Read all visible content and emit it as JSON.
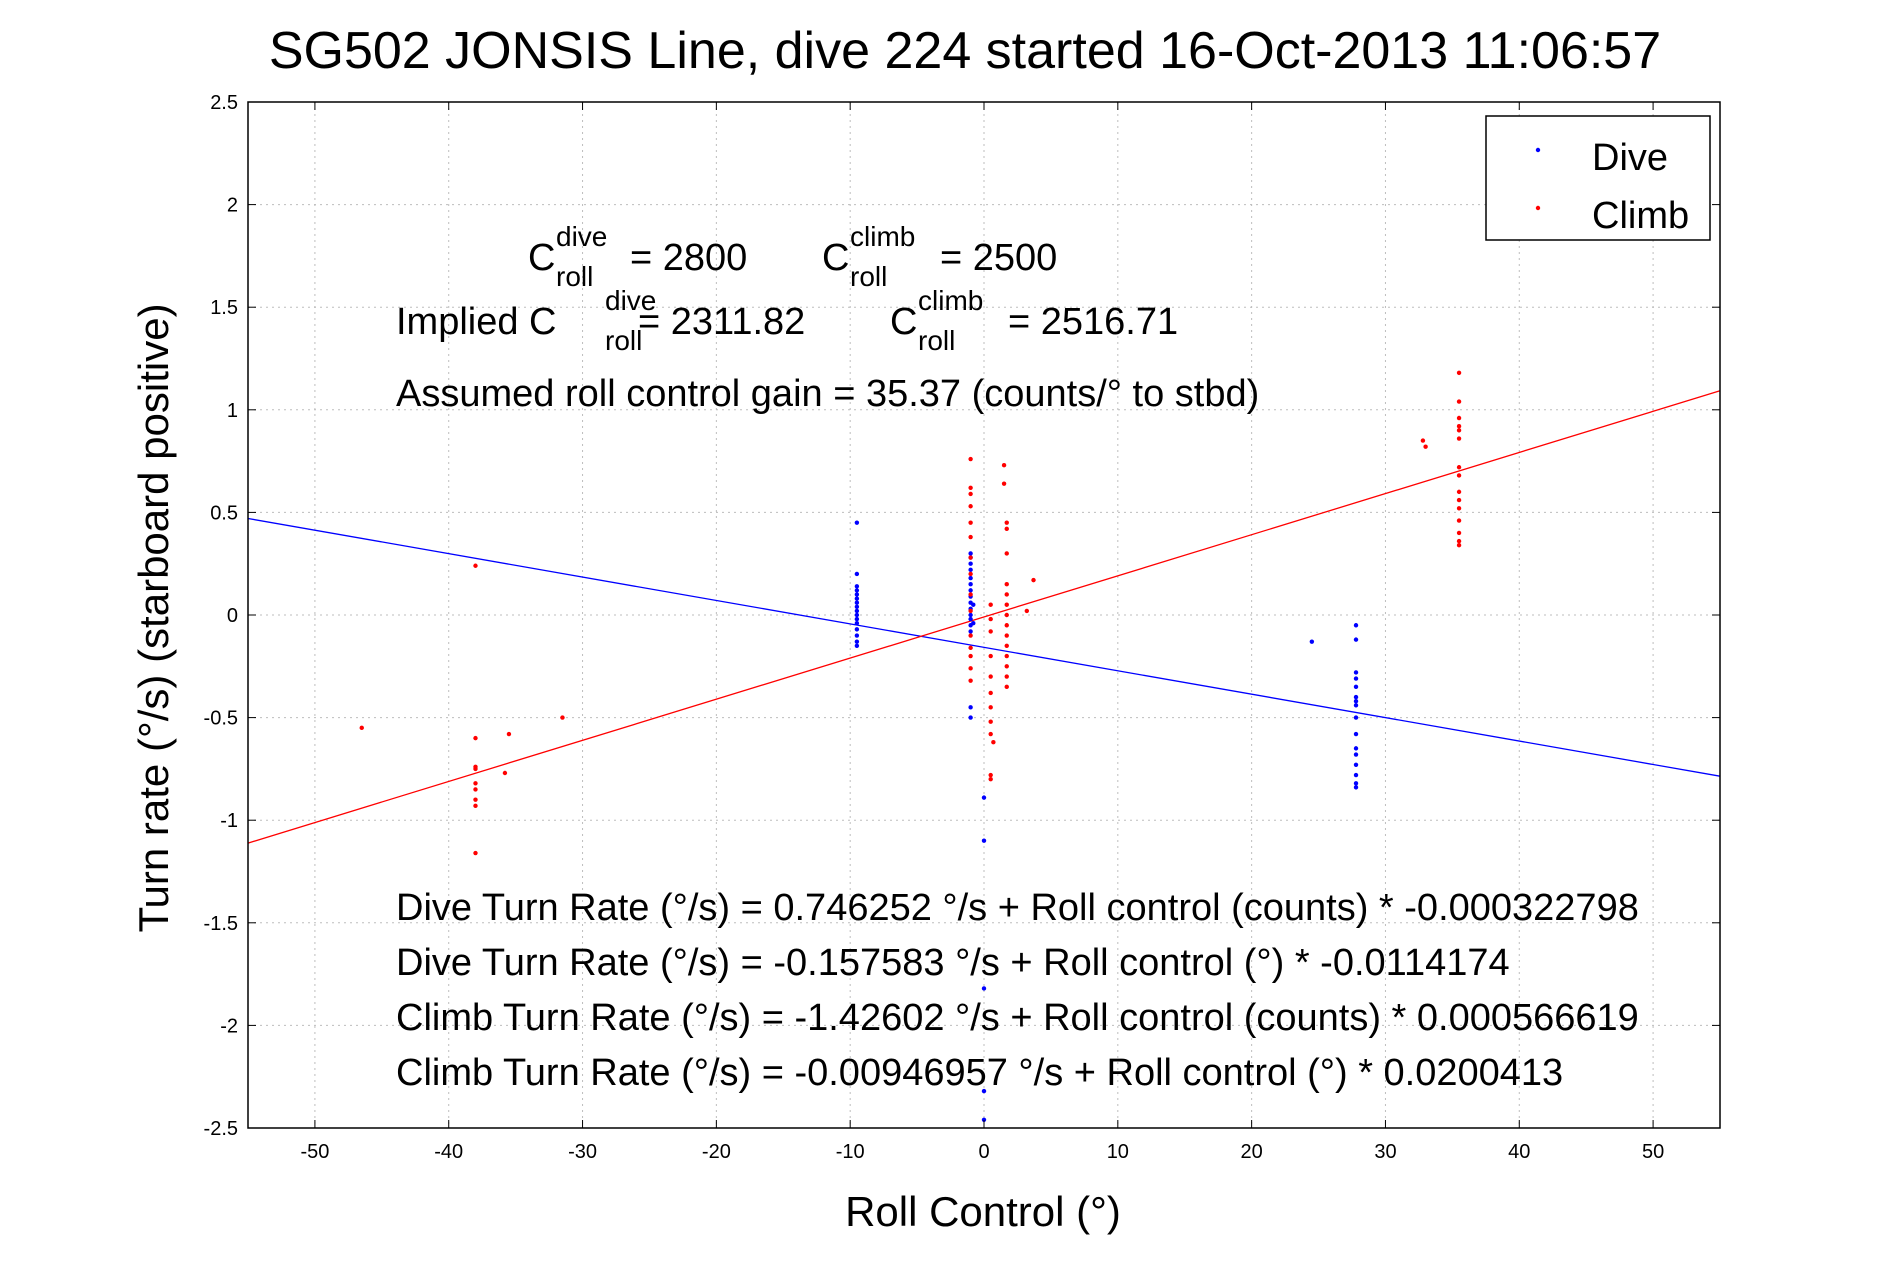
{
  "chart_data": {
    "type": "scatter",
    "title": "SG502 JONSIS Line, dive 224 started 16-Oct-2013 11:06:57",
    "xlabel": "Roll Control (°)",
    "ylabel": "Turn rate (°/s) (starboard positive)",
    "xlim": [
      -55,
      55
    ],
    "ylim": [
      -2.5,
      2.5
    ],
    "xticks": [
      -50,
      -40,
      -30,
      -20,
      -10,
      0,
      10,
      20,
      30,
      40,
      50
    ],
    "yticks": [
      -2.5,
      -2,
      -1.5,
      -1,
      -0.5,
      0,
      0.5,
      1,
      1.5,
      2,
      2.5
    ],
    "xtick_labels": [
      "-50",
      "-40",
      "-30",
      "-20",
      "-10",
      "0",
      "10",
      "20",
      "30",
      "40",
      "50"
    ],
    "ytick_labels": [
      "-2.5",
      "-2",
      "-1.5",
      "-1",
      "-0.5",
      "0",
      "0.5",
      "1",
      "1.5",
      "2",
      "2.5"
    ],
    "grid": true,
    "legend_position": "top-right",
    "series": [
      {
        "name": "Dive",
        "color": "#0000ff",
        "points": [
          [
            -9.5,
            0.45
          ],
          [
            -9.5,
            0.2
          ],
          [
            -9.5,
            0.14
          ],
          [
            -9.5,
            0.12
          ],
          [
            -9.5,
            0.1
          ],
          [
            -9.5,
            0.08
          ],
          [
            -9.5,
            0.06
          ],
          [
            -9.5,
            0.04
          ],
          [
            -9.5,
            0.02
          ],
          [
            -9.5,
            0.0
          ],
          [
            -9.5,
            -0.02
          ],
          [
            -9.5,
            -0.04
          ],
          [
            -9.5,
            -0.07
          ],
          [
            -9.5,
            -0.1
          ],
          [
            -9.5,
            -0.13
          ],
          [
            -9.5,
            -0.15
          ],
          [
            -1,
            0.3
          ],
          [
            -1,
            0.28
          ],
          [
            -1,
            0.25
          ],
          [
            -1,
            0.22
          ],
          [
            -1,
            0.18
          ],
          [
            -1,
            0.15
          ],
          [
            -1,
            0.12
          ],
          [
            -1,
            0.09
          ],
          [
            -1,
            0.06
          ],
          [
            -1,
            0.03
          ],
          [
            -1,
            0.0
          ],
          [
            -1,
            -0.02
          ],
          [
            -1,
            -0.05
          ],
          [
            -1,
            -0.08
          ],
          [
            -1,
            -0.45
          ],
          [
            -1,
            -0.5
          ],
          [
            -0.8,
            0.05
          ],
          [
            -0.8,
            -0.04
          ],
          [
            0,
            -0.89
          ],
          [
            0,
            -1.1
          ],
          [
            0,
            -1.82
          ],
          [
            0,
            -2.32
          ],
          [
            0,
            -2.46
          ],
          [
            24.5,
            -0.13
          ],
          [
            27.8,
            -0.05
          ],
          [
            27.8,
            -0.12
          ],
          [
            27.8,
            -0.28
          ],
          [
            27.8,
            -0.31
          ],
          [
            27.8,
            -0.35
          ],
          [
            27.8,
            -0.4
          ],
          [
            27.8,
            -0.42
          ],
          [
            27.8,
            -0.44
          ],
          [
            27.8,
            -0.5
          ],
          [
            27.8,
            -0.58
          ],
          [
            27.8,
            -0.65
          ],
          [
            27.8,
            -0.68
          ],
          [
            27.8,
            -0.73
          ],
          [
            27.8,
            -0.78
          ],
          [
            27.8,
            -0.82
          ],
          [
            27.8,
            -0.84
          ]
        ]
      },
      {
        "name": "Climb",
        "color": "#ff0000",
        "points": [
          [
            -46.5,
            -0.55
          ],
          [
            -38,
            0.24
          ],
          [
            -38,
            -0.6
          ],
          [
            -38,
            -0.74
          ],
          [
            -38,
            -0.75
          ],
          [
            -38,
            -0.82
          ],
          [
            -38,
            -0.85
          ],
          [
            -38,
            -0.9
          ],
          [
            -38,
            -0.93
          ],
          [
            -38,
            -1.16
          ],
          [
            -35.5,
            -0.58
          ],
          [
            -35.8,
            -0.77
          ],
          [
            -31.5,
            -0.5
          ],
          [
            -1,
            0.76
          ],
          [
            -1,
            0.62
          ],
          [
            -1,
            0.59
          ],
          [
            -1,
            0.53
          ],
          [
            -1,
            0.45
          ],
          [
            -1,
            0.38
          ],
          [
            -1,
            0.28
          ],
          [
            -1,
            0.2
          ],
          [
            -1,
            0.1
          ],
          [
            -1,
            0.02
          ],
          [
            -1,
            -0.1
          ],
          [
            -1,
            -0.16
          ],
          [
            -1,
            -0.2
          ],
          [
            -1,
            -0.26
          ],
          [
            -1,
            -0.32
          ],
          [
            0.5,
            0.05
          ],
          [
            0.5,
            -0.02
          ],
          [
            0.5,
            -0.08
          ],
          [
            0.5,
            -0.2
          ],
          [
            0.5,
            -0.3
          ],
          [
            0.5,
            -0.38
          ],
          [
            0.5,
            -0.45
          ],
          [
            0.5,
            -0.52
          ],
          [
            0.5,
            -0.58
          ],
          [
            0.7,
            -0.62
          ],
          [
            0.5,
            -0.78
          ],
          [
            0.5,
            -0.8
          ],
          [
            1.5,
            0.73
          ],
          [
            1.5,
            0.64
          ],
          [
            1.7,
            0.45
          ],
          [
            1.7,
            0.42
          ],
          [
            1.7,
            0.3
          ],
          [
            1.7,
            0.15
          ],
          [
            1.7,
            0.1
          ],
          [
            1.7,
            0.05
          ],
          [
            1.7,
            0.0
          ],
          [
            1.7,
            -0.05
          ],
          [
            1.7,
            -0.1
          ],
          [
            1.7,
            -0.15
          ],
          [
            1.7,
            -0.2
          ],
          [
            1.7,
            -0.25
          ],
          [
            1.7,
            -0.3
          ],
          [
            1.7,
            -0.35
          ],
          [
            3.2,
            0.02
          ],
          [
            3.7,
            0.17
          ],
          [
            32.8,
            0.85
          ],
          [
            33,
            0.82
          ],
          [
            35.5,
            1.18
          ],
          [
            35.5,
            1.04
          ],
          [
            35.5,
            0.96
          ],
          [
            35.5,
            0.92
          ],
          [
            35.5,
            0.9
          ],
          [
            35.5,
            0.86
          ],
          [
            35.5,
            0.72
          ],
          [
            35.5,
            0.68
          ],
          [
            35.5,
            0.6
          ],
          [
            35.5,
            0.56
          ],
          [
            35.5,
            0.52
          ],
          [
            35.5,
            0.46
          ],
          [
            35.5,
            0.4
          ],
          [
            35.5,
            0.36
          ],
          [
            35.5,
            0.34
          ]
        ]
      }
    ],
    "fit_lines": [
      {
        "name": "Dive",
        "color": "#0000ff",
        "intercept": -0.157583,
        "slope": -0.0114174
      },
      {
        "name": "Climb",
        "color": "#ff0000",
        "intercept": -0.00946957,
        "slope": 0.0200413
      }
    ],
    "annotations": {
      "c_dive_value": "= 2800",
      "c_climb_value": "= 2500",
      "implied_prefix": "Implied C",
      "implied_dive_value": "= 2311.82",
      "implied_climb_value": "= 2516.71",
      "c_letter": "C",
      "sup_dive": "dive",
      "sup_climb": "climb",
      "sub_roll": "roll",
      "gain_text": "Assumed roll control gain = 35.37 (counts/° to stbd)",
      "eq1": "Dive Turn Rate (°/s) = 0.746252 °/s + Roll control (counts) * -0.000322798",
      "eq2": "Dive Turn Rate (°/s) = -0.157583 °/s + Roll control (°) * -0.0114174",
      "eq3": "Climb Turn Rate (°/s) = -1.42602 °/s + Roll control (counts) * 0.000566619",
      "eq4": "Climb Turn Rate (°/s) = -0.00946957 °/s + Roll control (°) * 0.0200413"
    }
  }
}
